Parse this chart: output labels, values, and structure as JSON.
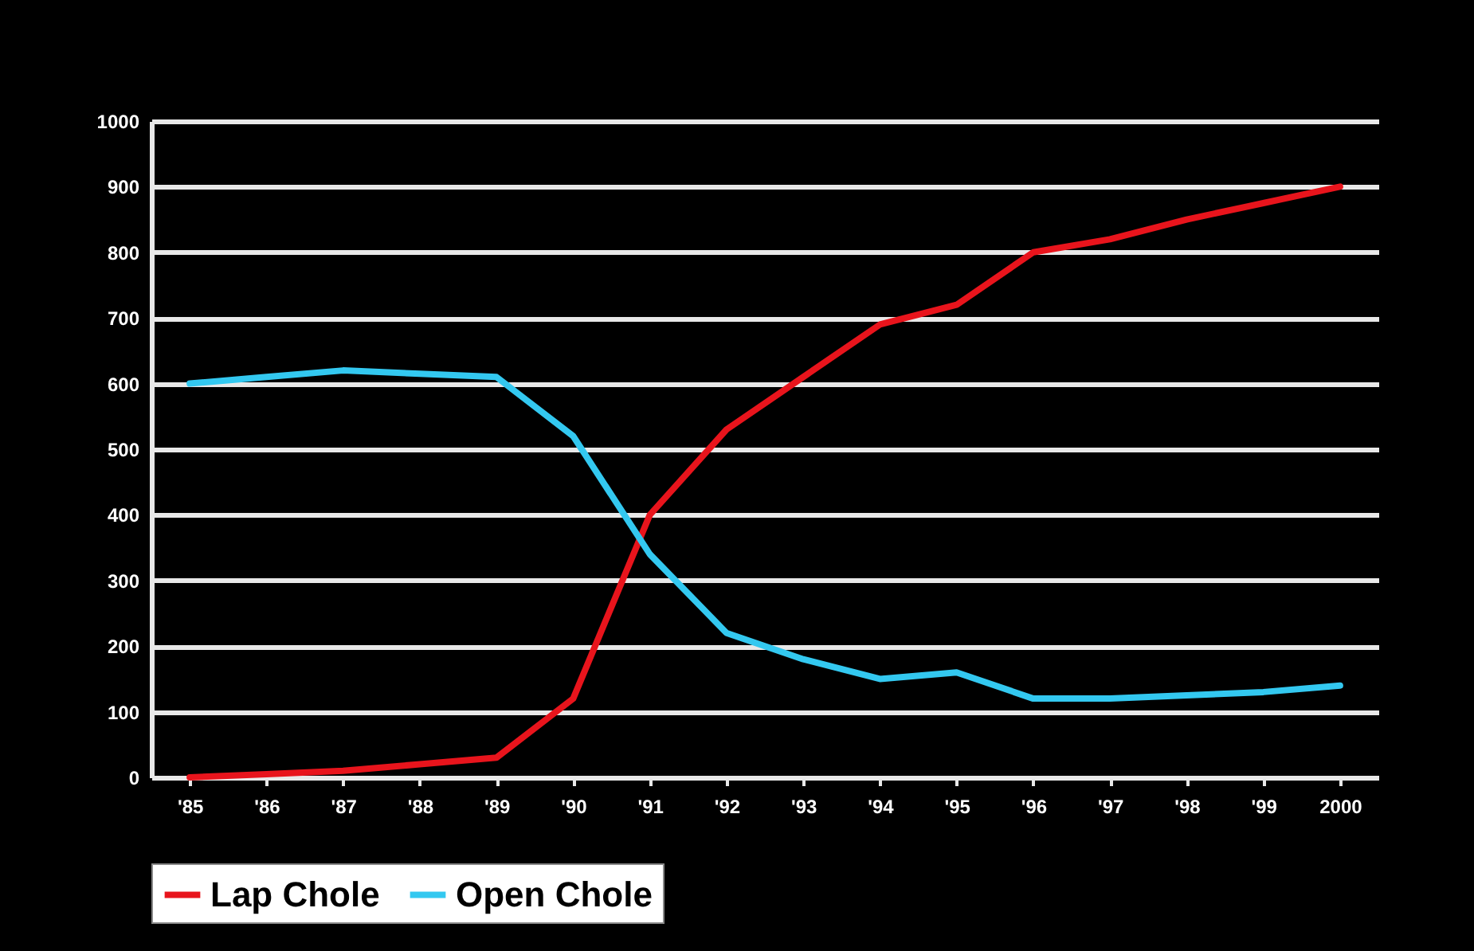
{
  "chart_data": {
    "type": "line",
    "categories": [
      "'85",
      "'86",
      "'87",
      "'88",
      "'89",
      "'90",
      "'91",
      "'92",
      "'93",
      "'94",
      "'95",
      "'96",
      "'97",
      "'98",
      "'99",
      "2000"
    ],
    "series": [
      {
        "name": "Lap Chole",
        "color": "#e8141c",
        "values": [
          0,
          5,
          10,
          20,
          30,
          120,
          400,
          530,
          610,
          690,
          720,
          800,
          820,
          850,
          875,
          900
        ]
      },
      {
        "name": "Open Chole",
        "color": "#33c8f0",
        "values": [
          600,
          610,
          620,
          615,
          610,
          520,
          340,
          220,
          180,
          150,
          160,
          120,
          120,
          125,
          130,
          140
        ]
      }
    ],
    "ylim": [
      0,
      1000
    ],
    "yticks": [
      0,
      100,
      200,
      300,
      400,
      500,
      600,
      700,
      800,
      900,
      1000
    ],
    "grid": "y",
    "legend": "bottom",
    "marker": "none",
    "line_style": "solid"
  }
}
